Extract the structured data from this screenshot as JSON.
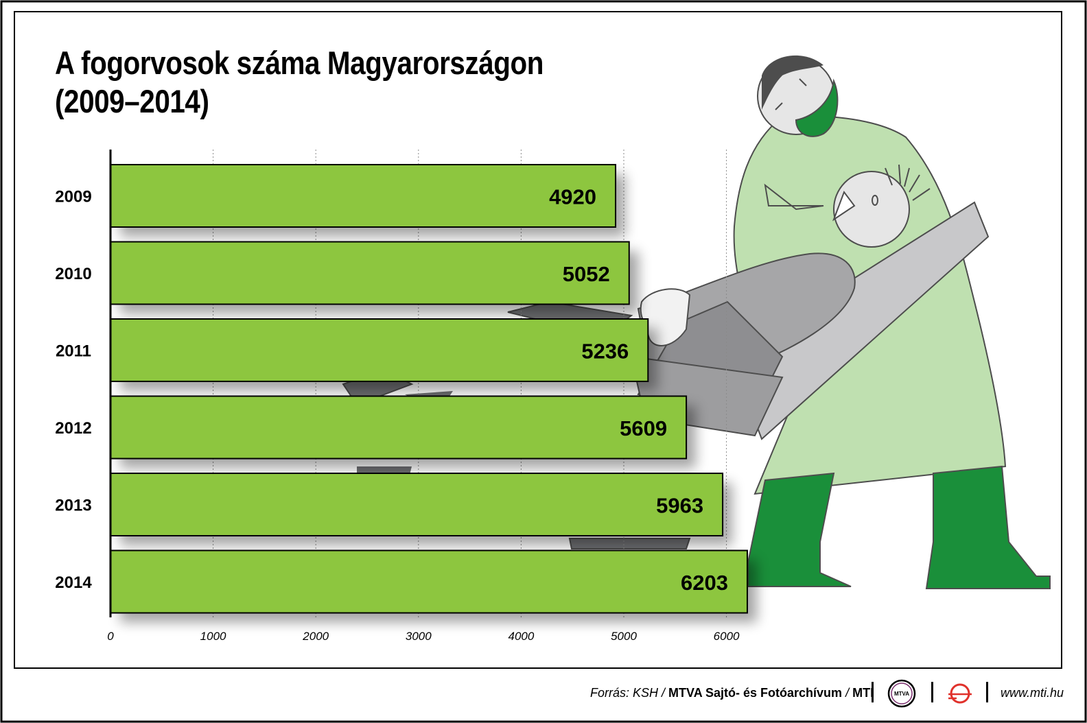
{
  "title_line1": "A fogorvosok száma Magyarországon",
  "title_line2": "(2009–2014)",
  "footer": {
    "source_prefix": "Forrás: KSH / ",
    "source_bold": "MTVA Sajtó- és Fotóarchívum",
    "source_sep": " / ",
    "source_mti": "MTI",
    "mtva_logo_text": "MTVA",
    "website": "www.mti.hu"
  },
  "colors": {
    "bar": "#8dc63f",
    "illustration_green": "#1a8f3a",
    "illustration_light_green": "#bfe0b0",
    "chair_grey": "#a6a6a8"
  },
  "chart_data": {
    "type": "bar",
    "orientation": "horizontal",
    "categories": [
      "2009",
      "2010",
      "2011",
      "2012",
      "2013",
      "2014"
    ],
    "values": [
      4920,
      5052,
      5236,
      5609,
      5963,
      6203
    ],
    "xlim": [
      0,
      6000
    ],
    "xticks": [
      "0",
      "1000",
      "2000",
      "3000",
      "4000",
      "5000",
      "6000"
    ],
    "grid": true,
    "title": "A fogorvosok száma Magyarországon (2009–2014)"
  }
}
